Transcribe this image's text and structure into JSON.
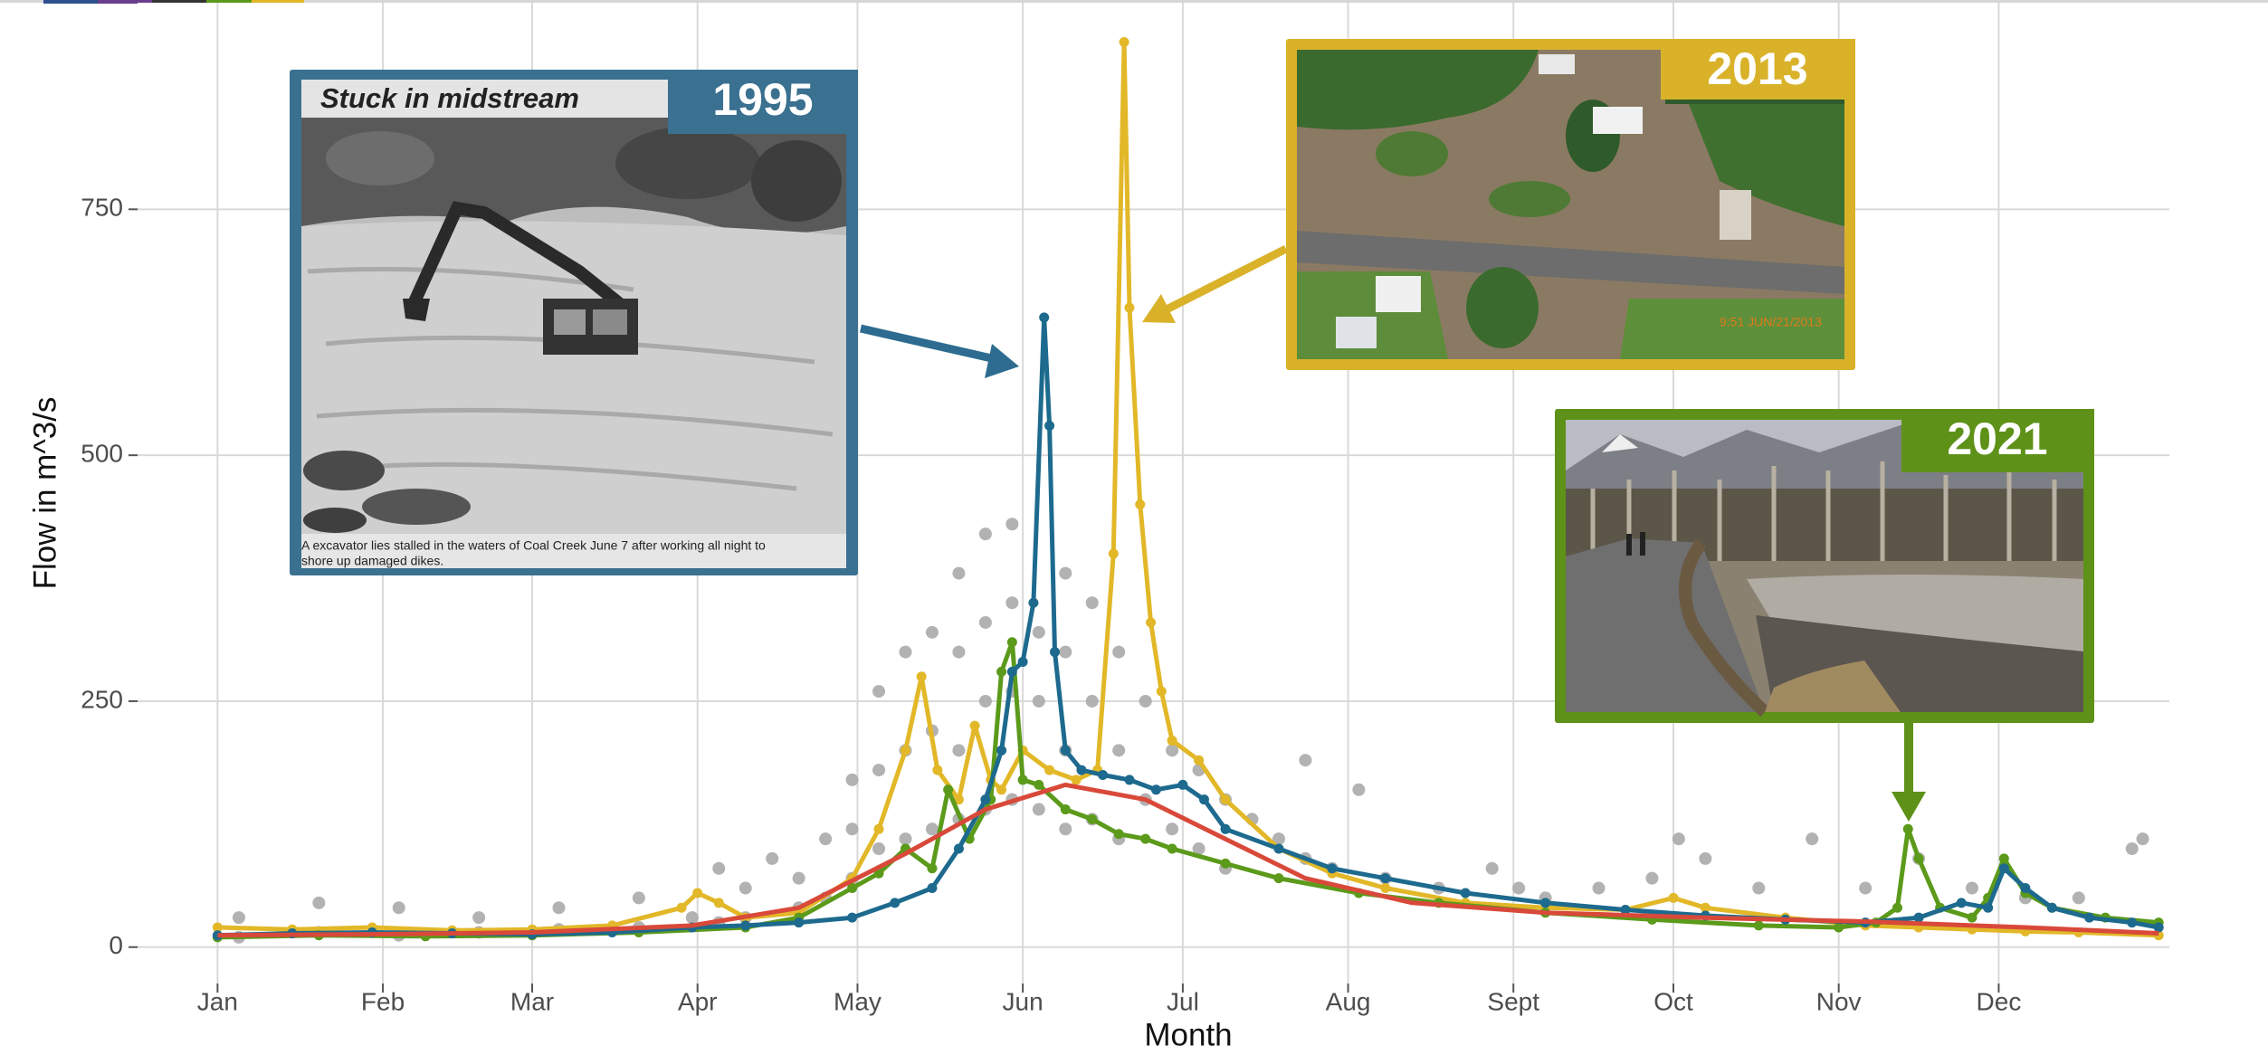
{
  "chart_data": {
    "type": "line",
    "x_label": "Month",
    "y_label": "Flow in m^3/s",
    "xlim": [
      -14,
      367
    ],
    "ylim": [
      -37,
      960
    ],
    "xticks": [
      {
        "value": 1,
        "label": "Jan"
      },
      {
        "value": 32,
        "label": "Feb"
      },
      {
        "value": 60,
        "label": "Mar"
      },
      {
        "value": 91,
        "label": "Apr"
      },
      {
        "value": 121,
        "label": "May"
      },
      {
        "value": 152,
        "label": "Jun"
      },
      {
        "value": 182,
        "label": "Jul"
      },
      {
        "value": 213,
        "label": "Aug"
      },
      {
        "value": 244,
        "label": "Sept"
      },
      {
        "value": 274,
        "label": "Oct"
      },
      {
        "value": 305,
        "label": "Nov"
      },
      {
        "value": 335,
        "label": "Dec"
      }
    ],
    "yticks": [
      0,
      250,
      500,
      750
    ],
    "grid": true,
    "series": [
      {
        "type": "scatter",
        "color": "#aaaaaa",
        "x": [
          5,
          5,
          20,
          20,
          35,
          35,
          50,
          50,
          65,
          65,
          80,
          80,
          90,
          95,
          95,
          100,
          100,
          105,
          110,
          110,
          115,
          115,
          120,
          120,
          120,
          125,
          125,
          125,
          130,
          130,
          130,
          135,
          135,
          135,
          140,
          140,
          140,
          140,
          145,
          145,
          145,
          145,
          150,
          150,
          150,
          150,
          155,
          155,
          155,
          160,
          160,
          160,
          160,
          165,
          165,
          165,
          170,
          170,
          170,
          175,
          175,
          180,
          180,
          185,
          185,
          190,
          190,
          195,
          200,
          205,
          205,
          210,
          215,
          220,
          230,
          240,
          245,
          250,
          260,
          270,
          275,
          280,
          290,
          300,
          310,
          320,
          330,
          340,
          350,
          360,
          362
        ],
        "values": [
          30,
          10,
          45,
          15,
          40,
          12,
          30,
          15,
          40,
          18,
          50,
          20,
          30,
          80,
          25,
          60,
          30,
          90,
          70,
          40,
          110,
          50,
          170,
          120,
          70,
          260,
          180,
          100,
          300,
          200,
          110,
          320,
          220,
          120,
          380,
          300,
          200,
          130,
          420,
          330,
          250,
          140,
          430,
          350,
          260,
          150,
          320,
          250,
          140,
          380,
          300,
          200,
          120,
          350,
          250,
          130,
          300,
          200,
          110,
          250,
          150,
          200,
          120,
          180,
          100,
          150,
          80,
          130,
          110,
          190,
          90,
          80,
          160,
          70,
          60,
          80,
          60,
          50,
          60,
          70,
          110,
          90,
          60,
          110,
          60,
          90,
          60,
          50,
          50,
          100,
          110
        ]
      },
      {
        "type": "line",
        "name": "2013",
        "color": "#e2b828",
        "markers": true,
        "x": [
          1,
          15,
          30,
          45,
          60,
          75,
          88,
          91,
          95,
          100,
          110,
          120,
          125,
          130,
          133,
          136,
          140,
          143,
          146,
          148,
          152,
          157,
          162,
          166,
          169,
          171,
          172,
          174,
          176,
          178,
          180,
          185,
          190,
          200,
          210,
          220,
          235,
          250,
          265,
          274,
          280,
          295,
          310,
          320,
          330,
          340,
          350,
          365
        ],
        "values": [
          20,
          18,
          20,
          17,
          18,
          22,
          40,
          55,
          45,
          30,
          35,
          70,
          120,
          200,
          275,
          180,
          150,
          225,
          170,
          160,
          200,
          180,
          170,
          180,
          400,
          920,
          650,
          450,
          330,
          260,
          210,
          190,
          150,
          100,
          75,
          60,
          45,
          40,
          38,
          50,
          40,
          30,
          22,
          20,
          18,
          16,
          15,
          12
        ]
      },
      {
        "type": "line",
        "name": "2021",
        "color": "#5b9a1a",
        "markers": true,
        "x": [
          1,
          20,
          40,
          60,
          80,
          100,
          110,
          120,
          125,
          130,
          135,
          138,
          142,
          146,
          148,
          150,
          152,
          155,
          160,
          165,
          170,
          175,
          180,
          190,
          200,
          215,
          230,
          250,
          270,
          290,
          305,
          312,
          316,
          318,
          320,
          324,
          330,
          333,
          336,
          340,
          345,
          355,
          365
        ],
        "values": [
          10,
          12,
          11,
          12,
          15,
          20,
          30,
          60,
          75,
          100,
          80,
          160,
          110,
          150,
          280,
          310,
          170,
          165,
          140,
          130,
          115,
          110,
          100,
          85,
          70,
          55,
          45,
          35,
          28,
          22,
          20,
          25,
          40,
          120,
          90,
          40,
          30,
          50,
          90,
          55,
          40,
          30,
          25
        ]
      },
      {
        "type": "line",
        "name": "1995",
        "color": "#1d6a8e",
        "markers": true,
        "x": [
          1,
          15,
          30,
          45,
          60,
          75,
          90,
          100,
          110,
          120,
          128,
          135,
          140,
          145,
          148,
          150,
          152,
          154,
          156,
          157,
          158,
          160,
          163,
          167,
          172,
          177,
          182,
          186,
          190,
          200,
          210,
          220,
          235,
          250,
          265,
          280,
          295,
          310,
          320,
          328,
          333,
          336,
          340,
          345,
          352,
          360,
          365
        ],
        "values": [
          12,
          14,
          15,
          14,
          13,
          15,
          20,
          22,
          25,
          30,
          45,
          60,
          100,
          150,
          200,
          280,
          290,
          350,
          640,
          530,
          300,
          200,
          180,
          175,
          170,
          160,
          165,
          150,
          120,
          100,
          80,
          70,
          55,
          45,
          38,
          32,
          28,
          25,
          30,
          45,
          40,
          80,
          60,
          40,
          30,
          25,
          20
        ]
      },
      {
        "type": "line",
        "color": "#d9493a",
        "markers": false,
        "x": [
          1,
          30,
          60,
          90,
          110,
          130,
          145,
          160,
          175,
          190,
          205,
          225,
          250,
          280,
          310,
          340,
          365
        ],
        "values": [
          12,
          13,
          15,
          22,
          40,
          95,
          140,
          165,
          150,
          110,
          70,
          45,
          35,
          30,
          26,
          20,
          14
        ]
      }
    ],
    "annotations": {
      "headline": "Stuck in midstream",
      "caption": [
        "A excavator lies stalled in the waters of Coal Creek June 7 after working all night to",
        "shore up damaged dikes."
      ],
      "stamp": "9:51 JUN/21/2013"
    }
  }
}
